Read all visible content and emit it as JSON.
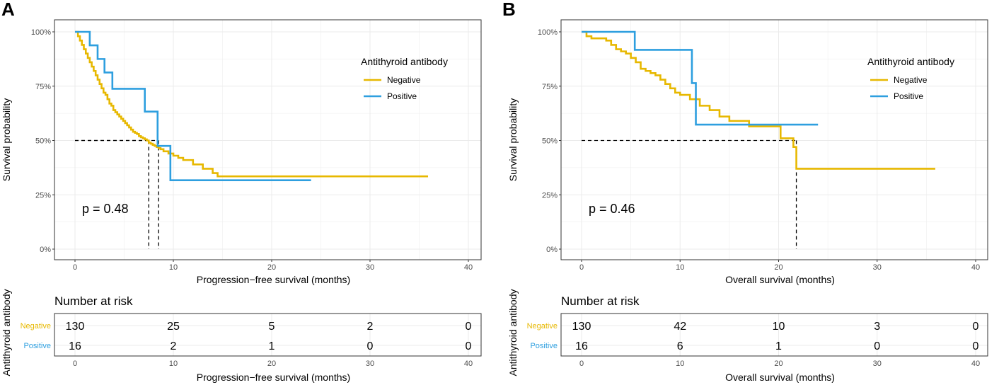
{
  "colors": {
    "negative": "#E7B800",
    "positive": "#2E9FDF",
    "grid": "#ebebeb",
    "frame": "#333333"
  },
  "shared": {
    "ylabel": "Survival probability",
    "y_ticks": [
      "0%",
      "25%",
      "50%",
      "75%",
      "100%"
    ],
    "x_ticks": [
      "0",
      "10",
      "20",
      "30",
      "40"
    ],
    "legend_title": "Antithyroid antibody",
    "risk_title": "Number at risk",
    "risk_ylabel": "Antithyroid antibody"
  },
  "chart_data": [
    {
      "type": "line",
      "panel": "A",
      "title": "",
      "xlabel": "Progression−free survival (months)",
      "ylabel": "Survival probability",
      "xlim": [
        0,
        40
      ],
      "ylim": [
        0,
        1
      ],
      "p_value": "p = 0.48",
      "legend": {
        "title": "Antithyroid antibody",
        "placement": "top-right"
      },
      "series": [
        {
          "name": "Negative",
          "color": "#E7B800",
          "x": [
            0,
            0.3,
            0.5,
            0.7,
            0.9,
            1.1,
            1.3,
            1.5,
            1.7,
            1.9,
            2.1,
            2.3,
            2.5,
            2.7,
            2.9,
            3.1,
            3.3,
            3.5,
            3.7,
            3.9,
            4.1,
            4.3,
            4.5,
            4.7,
            4.9,
            5.1,
            5.3,
            5.5,
            5.7,
            5.9,
            6.1,
            6.3,
            6.5,
            6.7,
            6.9,
            7.1,
            7.3,
            7.5,
            7.7,
            7.9,
            8.1,
            8.3,
            8.5,
            8.7,
            9.0,
            9.5,
            10.0,
            10.5,
            11.0,
            12.0,
            13.0,
            14.0,
            14.5,
            35.9
          ],
          "y": [
            1.0,
            0.98,
            0.96,
            0.94,
            0.92,
            0.9,
            0.88,
            0.86,
            0.84,
            0.82,
            0.8,
            0.78,
            0.76,
            0.74,
            0.72,
            0.71,
            0.69,
            0.67,
            0.66,
            0.64,
            0.63,
            0.62,
            0.61,
            0.6,
            0.59,
            0.58,
            0.57,
            0.56,
            0.55,
            0.54,
            0.535,
            0.53,
            0.52,
            0.515,
            0.51,
            0.505,
            0.5,
            0.49,
            0.485,
            0.48,
            0.475,
            0.47,
            0.465,
            0.46,
            0.45,
            0.44,
            0.43,
            0.42,
            0.41,
            0.39,
            0.37,
            0.35,
            0.335,
            0.335
          ]
        },
        {
          "name": "Positive",
          "color": "#2E9FDF",
          "x": [
            0,
            1.5,
            2.3,
            3.0,
            3.8,
            4.5,
            7.1,
            8.4,
            9.7,
            24.0
          ],
          "y": [
            1.0,
            0.938,
            0.875,
            0.813,
            0.738,
            0.738,
            0.633,
            0.475,
            0.317,
            0.317
          ]
        }
      ],
      "median_lines": [
        {
          "series": "Negative",
          "x": 7.5,
          "y": 0.5
        },
        {
          "series": "Positive",
          "x": 8.5,
          "y": 0.5
        }
      ],
      "risk_table": {
        "xlabel": "Progression−free survival (months)",
        "times": [
          0,
          10,
          20,
          30,
          40
        ],
        "rows": [
          {
            "name": "Negative",
            "values": [
              "130",
              "25",
              "5",
              "2",
              "0"
            ]
          },
          {
            "name": "Positive",
            "values": [
              "16",
              "2",
              "1",
              "0",
              "0"
            ]
          }
        ]
      }
    },
    {
      "type": "line",
      "panel": "B",
      "title": "",
      "xlabel": "Overall survival (months)",
      "ylabel": "Survival probability",
      "xlim": [
        0,
        40
      ],
      "ylim": [
        0,
        1
      ],
      "p_value": "p = 0.46",
      "legend": {
        "title": "Antithyroid antibody",
        "placement": "top-right"
      },
      "series": [
        {
          "name": "Negative",
          "color": "#E7B800",
          "x": [
            0,
            0.5,
            1.0,
            2.5,
            3.0,
            3.5,
            4.0,
            4.5,
            5.0,
            5.5,
            6.0,
            6.5,
            7.0,
            7.5,
            8.0,
            8.5,
            9.0,
            9.5,
            10.0,
            11.0,
            12.0,
            13.0,
            14.0,
            15.0,
            17.0,
            20.2,
            21.5,
            21.8,
            35.9
          ],
          "y": [
            1.0,
            0.98,
            0.97,
            0.96,
            0.94,
            0.92,
            0.91,
            0.9,
            0.88,
            0.86,
            0.83,
            0.82,
            0.81,
            0.8,
            0.78,
            0.76,
            0.74,
            0.72,
            0.71,
            0.69,
            0.66,
            0.64,
            0.61,
            0.59,
            0.565,
            0.51,
            0.47,
            0.37,
            0.37
          ]
        },
        {
          "name": "Positive",
          "color": "#2E9FDF",
          "x": [
            0,
            5.4,
            11.2,
            11.6,
            24.0
          ],
          "y": [
            1.0,
            0.917,
            0.764,
            0.573,
            0.573
          ]
        }
      ],
      "median_lines": [
        {
          "series": "Negative",
          "x": 21.8,
          "y": 0.5
        }
      ],
      "risk_table": {
        "xlabel": "Overall survival (months)",
        "times": [
          0,
          10,
          20,
          30,
          40
        ],
        "rows": [
          {
            "name": "Negative",
            "values": [
              "130",
              "42",
              "10",
              "3",
              "0"
            ]
          },
          {
            "name": "Positive",
            "values": [
              "16",
              "6",
              "1",
              "0",
              "0"
            ]
          }
        ]
      }
    }
  ]
}
